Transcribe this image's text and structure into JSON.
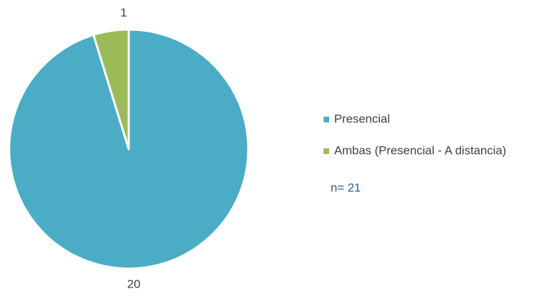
{
  "chart_data": {
    "type": "pie",
    "categories": [
      "Presencial",
      "Ambas (Presencial - A distancia)"
    ],
    "values": [
      20,
      1
    ],
    "colors": [
      "#4bacc6",
      "#9bbb59"
    ],
    "annotation": "n= 21",
    "legend": "right"
  }
}
